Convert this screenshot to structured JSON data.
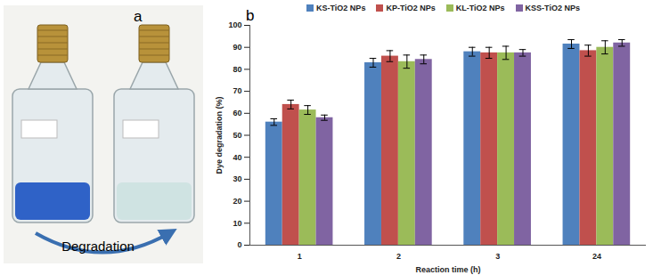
{
  "photo": {
    "panel_label": "a",
    "arrow_label": "Degradation"
  },
  "chart_data": {
    "type": "bar",
    "annotations": [
      "b"
    ],
    "categories": [
      "1",
      "2",
      "3",
      "24"
    ],
    "xlabel": "Reaction time (h)",
    "ylabel": "Dye degradation (%)",
    "series": [
      {
        "name": "KS-TiO2 NPs",
        "color": "#4f81bd",
        "values": [
          56,
          83,
          88,
          91.5
        ],
        "errors": [
          1.5,
          2,
          2,
          2
        ]
      },
      {
        "name": "KP-TiO2 NPs",
        "color": "#c0504d",
        "values": [
          64,
          86,
          87.5,
          88.5
        ],
        "errors": [
          2,
          2.5,
          2.5,
          2.5
        ]
      },
      {
        "name": "KL-TiO2 NPs",
        "color": "#9bbb59",
        "values": [
          61.5,
          83.5,
          87.5,
          90
        ],
        "errors": [
          2,
          3,
          3,
          3
        ]
      },
      {
        "name": "KSS-TiO2 NPs",
        "color": "#8064a2",
        "values": [
          58,
          84.5,
          87.5,
          92
        ],
        "errors": [
          1.2,
          2,
          1.5,
          1.5
        ]
      }
    ],
    "ylim": [
      0,
      100
    ],
    "yticks": [
      0,
      10,
      20,
      30,
      40,
      50,
      60,
      70,
      80,
      90,
      100
    ],
    "grid": false,
    "legend": "top"
  }
}
